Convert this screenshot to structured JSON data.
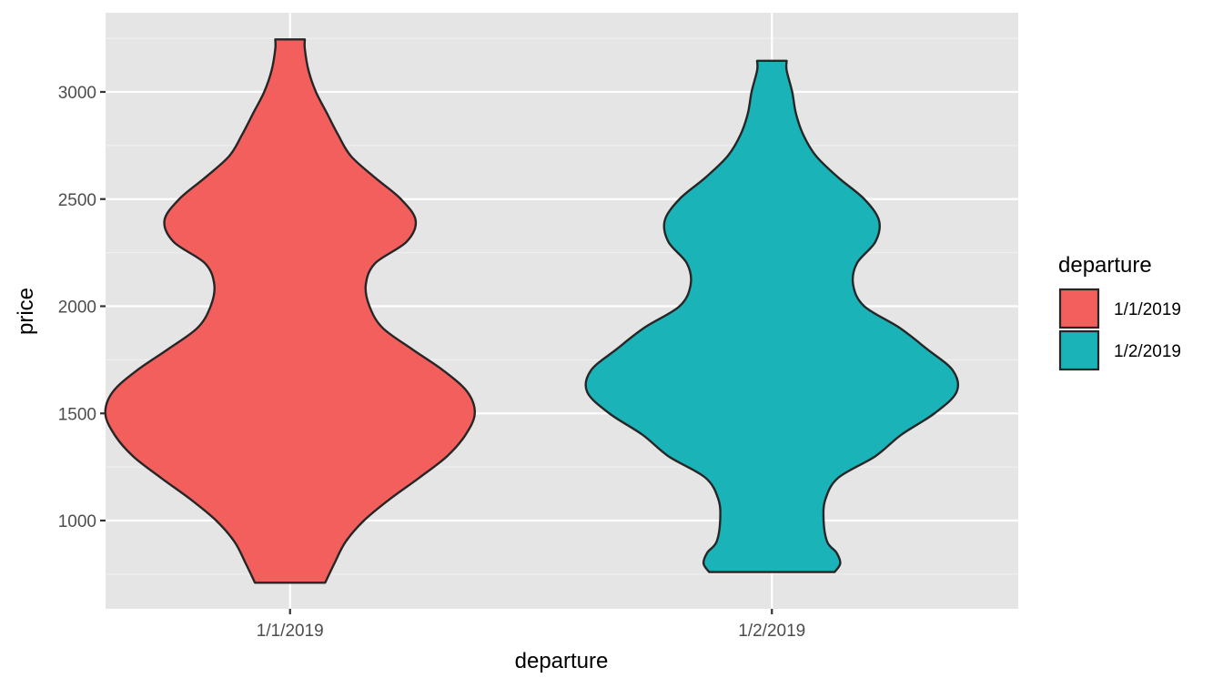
{
  "chart_data": {
    "type": "violin",
    "xlabel": "departure",
    "ylabel": "price",
    "ylim": [
      600,
      3350
    ],
    "yticks": [
      1000,
      1500,
      2000,
      2500,
      3000
    ],
    "yminor": [
      750,
      1250,
      1750,
      2250,
      2750,
      3250
    ],
    "grid": true,
    "categories": [
      "1/1/2019",
      "1/2/2019"
    ],
    "legend": {
      "title": "departure",
      "placement": "right",
      "entries": [
        "1/1/2019",
        "1/2/2019"
      ]
    },
    "series": [
      {
        "name": "1/1/2019",
        "color": "#f25f5c",
        "min": 710,
        "max": 3245,
        "density_profile": [
          [
            710,
            0.19
          ],
          [
            800,
            0.24
          ],
          [
            900,
            0.3
          ],
          [
            1000,
            0.4
          ],
          [
            1100,
            0.54
          ],
          [
            1200,
            0.7
          ],
          [
            1300,
            0.85
          ],
          [
            1400,
            0.95
          ],
          [
            1500,
            1.0
          ],
          [
            1600,
            0.96
          ],
          [
            1700,
            0.83
          ],
          [
            1800,
            0.66
          ],
          [
            1900,
            0.5
          ],
          [
            2000,
            0.43
          ],
          [
            2100,
            0.41
          ],
          [
            2200,
            0.46
          ],
          [
            2300,
            0.63
          ],
          [
            2400,
            0.68
          ],
          [
            2500,
            0.6
          ],
          [
            2600,
            0.46
          ],
          [
            2700,
            0.33
          ],
          [
            2800,
            0.26
          ],
          [
            2900,
            0.2
          ],
          [
            3000,
            0.14
          ],
          [
            3100,
            0.1
          ],
          [
            3200,
            0.08
          ],
          [
            3245,
            0.08
          ]
        ]
      },
      {
        "name": "1/2/2019",
        "color": "#1ab3b8",
        "min": 760,
        "max": 3145,
        "density_profile": [
          [
            760,
            0.34
          ],
          [
            800,
            0.37
          ],
          [
            850,
            0.35
          ],
          [
            900,
            0.3
          ],
          [
            1000,
            0.28
          ],
          [
            1100,
            0.29
          ],
          [
            1200,
            0.36
          ],
          [
            1300,
            0.56
          ],
          [
            1400,
            0.7
          ],
          [
            1500,
            0.88
          ],
          [
            1600,
            1.0
          ],
          [
            1700,
            0.98
          ],
          [
            1800,
            0.84
          ],
          [
            1900,
            0.69
          ],
          [
            2000,
            0.5
          ],
          [
            2100,
            0.44
          ],
          [
            2200,
            0.46
          ],
          [
            2300,
            0.56
          ],
          [
            2400,
            0.58
          ],
          [
            2500,
            0.5
          ],
          [
            2600,
            0.36
          ],
          [
            2700,
            0.24
          ],
          [
            2800,
            0.17
          ],
          [
            2900,
            0.13
          ],
          [
            3000,
            0.11
          ],
          [
            3100,
            0.08
          ],
          [
            3145,
            0.08
          ]
        ]
      }
    ]
  }
}
